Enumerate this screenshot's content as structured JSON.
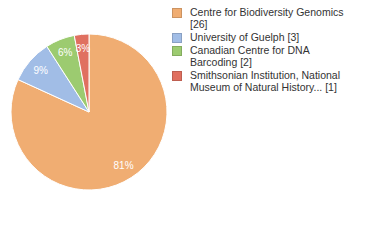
{
  "chart_data": {
    "type": "pie",
    "categories": [
      "Centre for Biodiversity Genomics [26]",
      "University of Guelph [3]",
      "Canadian Centre for DNA Barcoding [2]",
      "Smithsonian Institution, National Museum of Natural History... [1]"
    ],
    "values": [
      81,
      9,
      6,
      3
    ],
    "value_labels": [
      "81%",
      "9%",
      "6%",
      "3%"
    ],
    "colors": [
      "#f0ad72",
      "#a1bde6",
      "#9ccb70",
      "#e07060"
    ],
    "data_labels": true,
    "legend": "right"
  }
}
